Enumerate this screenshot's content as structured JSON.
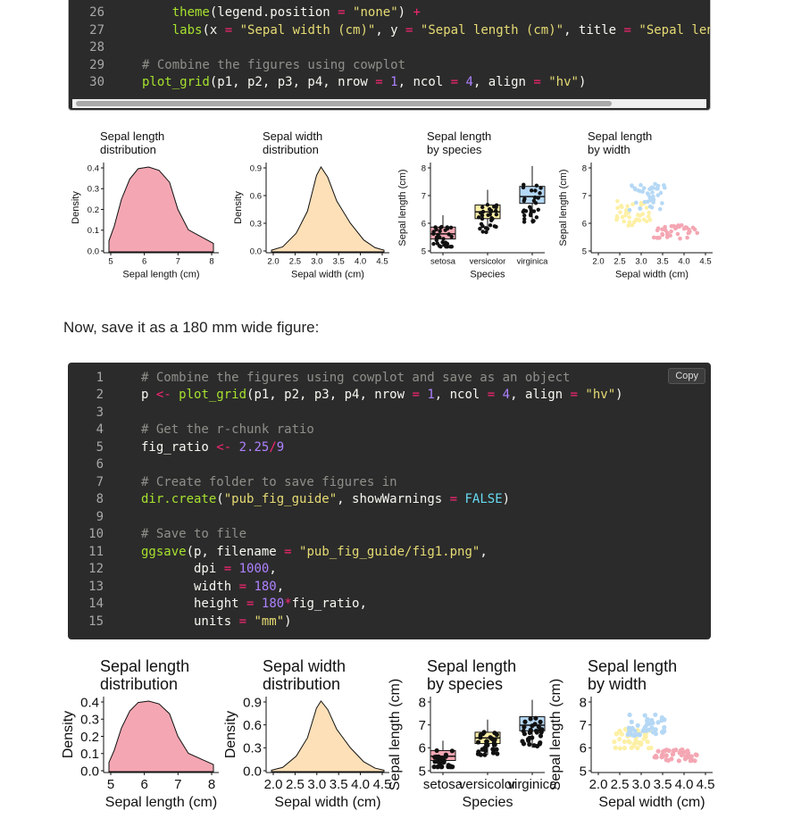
{
  "code_block_1": {
    "lines": [
      {
        "num": "26",
        "tokens": [
          [
            "    ",
            "p"
          ],
          [
            "theme",
            "f"
          ],
          [
            "(legend.position ",
            "p"
          ],
          [
            "=",
            "o"
          ],
          [
            " ",
            "p"
          ],
          [
            "\"none\"",
            "s"
          ],
          [
            ") ",
            "p"
          ],
          [
            "+",
            "o"
          ]
        ]
      },
      {
        "num": "27",
        "tokens": [
          [
            "    ",
            "p"
          ],
          [
            "labs",
            "f"
          ],
          [
            "(x ",
            "p"
          ],
          [
            "=",
            "o"
          ],
          [
            " ",
            "p"
          ],
          [
            "\"Sepal width (cm)\"",
            "s"
          ],
          [
            ", y ",
            "p"
          ],
          [
            "=",
            "o"
          ],
          [
            " ",
            "p"
          ],
          [
            "\"Sepal length (cm)\"",
            "s"
          ],
          [
            ", title ",
            "p"
          ],
          [
            "=",
            "o"
          ],
          [
            " ",
            "p"
          ],
          [
            "\"Sepal lengt",
            "s"
          ]
        ]
      },
      {
        "num": "28",
        "tokens": []
      },
      {
        "num": "29",
        "tokens": [
          [
            "# Combine the figures using cowplot",
            "c"
          ]
        ]
      },
      {
        "num": "30",
        "tokens": [
          [
            "plot_grid",
            "f"
          ],
          [
            "(p1, p2, p3, p4, nrow ",
            "p"
          ],
          [
            "=",
            "o"
          ],
          [
            " ",
            "p"
          ],
          [
            "1",
            "n"
          ],
          [
            ", ncol ",
            "p"
          ],
          [
            "=",
            "o"
          ],
          [
            " ",
            "p"
          ],
          [
            "4",
            "n"
          ],
          [
            ", align ",
            "p"
          ],
          [
            "=",
            "o"
          ],
          [
            " ",
            "p"
          ],
          [
            "\"hv\"",
            "s"
          ],
          [
            ")",
            "p"
          ]
        ]
      }
    ]
  },
  "prose_text": "Now, save it as a 180 mm wide figure:",
  "code_block_2": {
    "copy_label": "Copy",
    "lines": [
      {
        "num": "1",
        "tokens": [
          [
            "# Combine the figures using cowplot and save as an object",
            "c"
          ]
        ]
      },
      {
        "num": "2",
        "tokens": [
          [
            "p ",
            "p"
          ],
          [
            "<-",
            "o"
          ],
          [
            " ",
            "p"
          ],
          [
            "plot_grid",
            "f"
          ],
          [
            "(p1, p2, p3, p4, nrow ",
            "p"
          ],
          [
            "=",
            "o"
          ],
          [
            " ",
            "p"
          ],
          [
            "1",
            "n"
          ],
          [
            ", ncol ",
            "p"
          ],
          [
            "=",
            "o"
          ],
          [
            " ",
            "p"
          ],
          [
            "4",
            "n"
          ],
          [
            ", align ",
            "p"
          ],
          [
            "=",
            "o"
          ],
          [
            " ",
            "p"
          ],
          [
            "\"hv\"",
            "s"
          ],
          [
            ")",
            "p"
          ]
        ]
      },
      {
        "num": "3",
        "tokens": []
      },
      {
        "num": "4",
        "tokens": [
          [
            "# Get the r-chunk ratio",
            "c"
          ]
        ]
      },
      {
        "num": "5",
        "tokens": [
          [
            "fig_ratio ",
            "p"
          ],
          [
            "<-",
            "o"
          ],
          [
            " ",
            "p"
          ],
          [
            "2.25",
            "n"
          ],
          [
            "/",
            "o"
          ],
          [
            "9",
            "n"
          ]
        ]
      },
      {
        "num": "6",
        "tokens": []
      },
      {
        "num": "7",
        "tokens": [
          [
            "# Create folder to save figures in",
            "c"
          ]
        ]
      },
      {
        "num": "8",
        "tokens": [
          [
            "dir.create",
            "f"
          ],
          [
            "(",
            "p"
          ],
          [
            "\"pub_fig_guide\"",
            "s"
          ],
          [
            ", showWarnings ",
            "p"
          ],
          [
            "=",
            "o"
          ],
          [
            " ",
            "p"
          ],
          [
            "FALSE",
            "k"
          ],
          [
            ")",
            "p"
          ]
        ]
      },
      {
        "num": "9",
        "tokens": []
      },
      {
        "num": "10",
        "tokens": [
          [
            "# Save to file",
            "c"
          ]
        ]
      },
      {
        "num": "11",
        "tokens": [
          [
            "ggsave",
            "f"
          ],
          [
            "(p, filename ",
            "p"
          ],
          [
            "=",
            "o"
          ],
          [
            " ",
            "p"
          ],
          [
            "\"pub_fig_guide/fig1.png\"",
            "s"
          ],
          [
            ",",
            "p"
          ]
        ]
      },
      {
        "num": "12",
        "tokens": [
          [
            "       dpi ",
            "p"
          ],
          [
            "=",
            "o"
          ],
          [
            " ",
            "p"
          ],
          [
            "1000",
            "n"
          ],
          [
            ",",
            "p"
          ]
        ]
      },
      {
        "num": "13",
        "tokens": [
          [
            "       width ",
            "p"
          ],
          [
            "=",
            "o"
          ],
          [
            " ",
            "p"
          ],
          [
            "180",
            "n"
          ],
          [
            ",",
            "p"
          ]
        ]
      },
      {
        "num": "14",
        "tokens": [
          [
            "       height ",
            "p"
          ],
          [
            "=",
            "o"
          ],
          [
            " ",
            "p"
          ],
          [
            "180",
            "n"
          ],
          [
            "*",
            "o"
          ],
          [
            "fig_ratio,",
            "p"
          ]
        ]
      },
      {
        "num": "15",
        "tokens": [
          [
            "       units ",
            "p"
          ],
          [
            "=",
            "o"
          ],
          [
            " ",
            "p"
          ],
          [
            "\"mm\"",
            "s"
          ],
          [
            ")",
            "p"
          ]
        ]
      }
    ]
  },
  "colors": {
    "plain": "#f8f8f2",
    "function": "#a6e22e",
    "string": "#e6db74",
    "number": "#ae81ff",
    "operator": "#f92672",
    "comment": "#8f8f8a",
    "keyword": "#66d9ef",
    "setosa": "#f4a7b3",
    "versicolor": "#fdf0a6",
    "virginica": "#b5d8f5",
    "width_fill": "#fde0b8"
  },
  "figures": {
    "panel1": {
      "title_l1": "Sepal length",
      "title_l2": "distribution",
      "xlabel": "Sepal length (cm)",
      "ylabel": "Density",
      "xticks": [
        "5",
        "6",
        "7",
        "8"
      ],
      "yticks": [
        "0.0",
        "0.1",
        "0.2",
        "0.3",
        "0.4"
      ]
    },
    "panel2": {
      "title_l1": "Sepal width",
      "title_l2": "distribution",
      "xlabel": "Sepal width (cm)",
      "ylabel": "Density",
      "xticks": [
        "2.0",
        "2.5",
        "3.0",
        "3.5",
        "4.0",
        "4.5"
      ],
      "yticks": [
        "0.0",
        "0.3",
        "0.6",
        "0.9"
      ]
    },
    "panel3": {
      "title_l1": "Sepal length",
      "title_l2": "by species",
      "xlabel": "Species",
      "ylabel": "Sepal length (cm)",
      "xticks": [
        "setosa",
        "versicolor",
        "virginica"
      ],
      "yticks": [
        "5",
        "6",
        "7",
        "8"
      ]
    },
    "panel4": {
      "title_l1": "Sepal length",
      "title_l2": "by width",
      "xlabel": "Sepal width (cm)",
      "ylabel": "Sepal length (cm)",
      "xticks": [
        "2.0",
        "2.5",
        "3.0",
        "3.5",
        "4.0",
        "4.5"
      ],
      "yticks": [
        "5",
        "6",
        "7",
        "8"
      ]
    }
  }
}
